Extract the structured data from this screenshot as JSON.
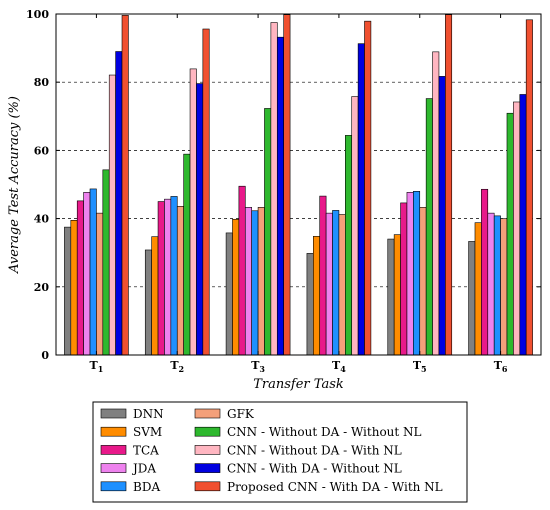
{
  "chart_data": {
    "type": "bar",
    "title": "",
    "xlabel": "Transfer Task",
    "ylabel": "Average Test Accuracy (%)",
    "ylim": [
      0,
      100
    ],
    "yticks": [
      0,
      20,
      40,
      60,
      80,
      100
    ],
    "grid": "horizontal dashed",
    "legend_position": "bottom",
    "categories": [
      "T1",
      "T2",
      "T3",
      "T4",
      "T5",
      "T6"
    ],
    "category_labels": [
      {
        "main": "T",
        "sub": "1"
      },
      {
        "main": "T",
        "sub": "2"
      },
      {
        "main": "T",
        "sub": "3"
      },
      {
        "main": "T",
        "sub": "4"
      },
      {
        "main": "T",
        "sub": "5"
      },
      {
        "main": "T",
        "sub": "6"
      }
    ],
    "series": [
      {
        "name": "DNN",
        "color": "#808080",
        "values": [
          37.5,
          30.8,
          35.8,
          29.8,
          34.0,
          33.3
        ]
      },
      {
        "name": "SVM",
        "color": "#ff8c00",
        "values": [
          39.5,
          34.7,
          39.8,
          34.8,
          35.3,
          38.8
        ]
      },
      {
        "name": "TCA",
        "color": "#e8198a",
        "values": [
          45.2,
          45.0,
          49.5,
          46.6,
          44.6,
          48.6
        ]
      },
      {
        "name": "JDA",
        "color": "#ee82ee",
        "values": [
          47.7,
          45.7,
          43.3,
          41.6,
          47.7,
          41.6
        ]
      },
      {
        "name": "BDA",
        "color": "#1e90ff",
        "values": [
          48.7,
          46.5,
          42.3,
          42.4,
          48.0,
          40.8
        ]
      },
      {
        "name": "GFK",
        "color": "#f4a07a",
        "values": [
          41.6,
          43.6,
          43.3,
          41.2,
          43.3,
          40.0
        ]
      },
      {
        "name": "CNN - Without DA - Without NL",
        "color": "#2eb82e",
        "values": [
          54.3,
          58.9,
          72.3,
          64.4,
          75.2,
          70.9
        ]
      },
      {
        "name": "CNN - Without DA - With NL",
        "color": "#ffb6c1",
        "values": [
          82.1,
          83.9,
          97.5,
          75.8,
          88.9,
          74.2
        ]
      },
      {
        "name": "CNN - With DA - Without NL",
        "color": "#0000e0",
        "values": [
          89.0,
          79.6,
          93.2,
          91.3,
          81.7,
          76.4
        ]
      },
      {
        "name": "Proposed CNN - With DA - With NL",
        "color": "#f05030",
        "values": [
          99.6,
          95.6,
          99.8,
          97.9,
          99.8,
          98.3
        ]
      }
    ]
  }
}
